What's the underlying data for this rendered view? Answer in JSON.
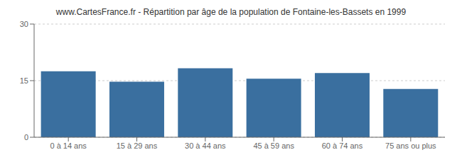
{
  "chart_data": {
    "type": "bar",
    "title": "www.CartesFrance.fr - Répartition par âge de la population de Fontaine-les-Bassets en 1999",
    "categories": [
      "0 à 14 ans",
      "15 à 29 ans",
      "30 à 44 ans",
      "45 à 59 ans",
      "60 à 74 ans",
      "75 ans ou plus"
    ],
    "values": [
      17.5,
      14.7,
      18.3,
      15.5,
      17.0,
      12.8
    ],
    "color": "#3a6f9f",
    "ylim": [
      0,
      30
    ],
    "yticks": [
      0,
      15,
      30
    ],
    "grid": true
  }
}
